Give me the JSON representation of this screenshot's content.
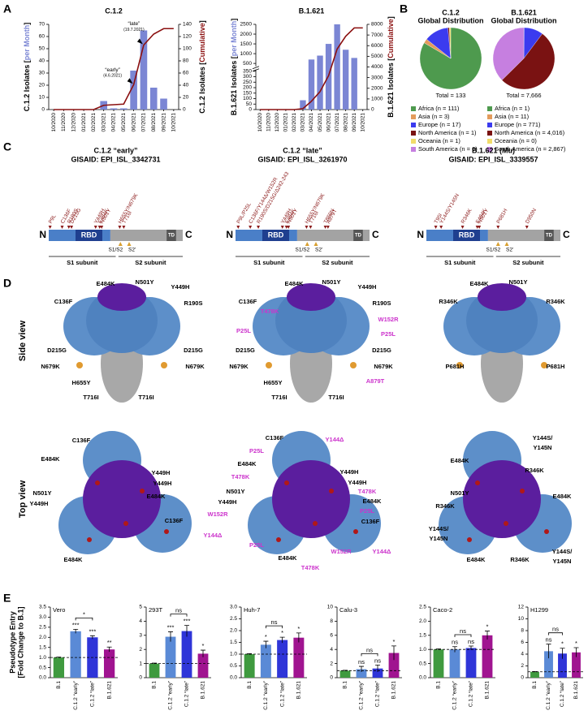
{
  "panel_labels": [
    "A",
    "B",
    "C",
    "D",
    "E"
  ],
  "chart_data": [
    {
      "type": "combo",
      "title": "C.1.2",
      "categories": [
        "10/2020",
        "11/2020",
        "12/2020",
        "01/2021",
        "02/2021",
        "03/2021",
        "04/2021",
        "05/2021",
        "06/2021",
        "07/2021",
        "08/2021",
        "09/2021",
        "10/2021"
      ],
      "series": [
        {
          "type": "bar",
          "color": "#7b86d4",
          "values": [
            0,
            0,
            0,
            0,
            0,
            7,
            1,
            1,
            32,
            65,
            18,
            9,
            0
          ]
        },
        {
          "type": "line",
          "color": "#8b1010",
          "axis": "y2",
          "values": [
            0,
            0,
            0,
            0,
            0,
            7,
            8,
            9,
            41,
            106,
            124,
            133,
            133
          ]
        }
      ],
      "ylabel": [
        "C.1.2 Isolates [",
        "per Month",
        "]"
      ],
      "y2label": [
        "C.1.2 Isolates [",
        "Cumulative",
        "]"
      ],
      "ylim": [
        0,
        70
      ],
      "yticks": [
        0,
        10,
        20,
        30,
        40,
        50,
        60,
        70
      ],
      "y2lim": [
        0,
        140
      ],
      "y2ticks": [
        0,
        20,
        40,
        60,
        80,
        100,
        120,
        140
      ],
      "annotations": [
        {
          "label": "“late”",
          "note": "(19.7.2021)"
        },
        {
          "label": "“early”",
          "note": "(4.6.2021)"
        }
      ]
    },
    {
      "type": "combo",
      "title": "B.1.621",
      "categories": [
        "10/2020",
        "11/2020",
        "12/2020",
        "01/2021",
        "02/2021",
        "03/2021",
        "04/2021",
        "05/2021",
        "06/2021",
        "07/2021",
        "08/2021",
        "09/2021",
        "10/2021"
      ],
      "series": [
        {
          "type": "bar",
          "color": "#7b86d4",
          "values": [
            0,
            0,
            0,
            0,
            0,
            85,
            700,
            900,
            1500,
            2500,
            1200,
            781,
            0
          ]
        },
        {
          "type": "line",
          "color": "#8b1010",
          "axis": "y2",
          "values": [
            0,
            0,
            0,
            0,
            0,
            85,
            785,
            1685,
            3185,
            5685,
            6885,
            7666,
            7666
          ]
        }
      ],
      "ylabel": [
        "B.1.621 Isolates [",
        "per Month",
        "]"
      ],
      "y2label": [
        "B.1.621 Isolates [",
        "Cumulative",
        "]"
      ],
      "ylim": [
        0,
        2500
      ],
      "axis_break": 350,
      "yticks": [
        0,
        50,
        100,
        150,
        200,
        250,
        300,
        350,
        500,
        1000,
        1500,
        2000,
        2500
      ],
      "y2lim": [
        0,
        8000
      ],
      "y2ticks": [
        0,
        1000,
        2000,
        3000,
        4000,
        5000,
        6000,
        7000,
        8000
      ]
    },
    {
      "type": "pie",
      "title": "C.1.2",
      "subtitle": "Global Distribution",
      "total_label": "Total = 133",
      "categories": [
        "Africa (n = 111)",
        "Asia (n = 3)",
        "Europe (n = 17)",
        "North America (n = 1)",
        "Oceania (n = 1)",
        "South America (n = 0)"
      ],
      "values": [
        111,
        3,
        17,
        1,
        1,
        0
      ],
      "colors": [
        "#4e9a4e",
        "#e39b5c",
        "#3b3bef",
        "#7a1212",
        "#f2dc6a",
        "#c67fe0"
      ]
    },
    {
      "type": "pie",
      "title": "B.1.621",
      "subtitle": "Global Distribution",
      "total_label": "Total = 7,666",
      "categories": [
        "Africa (n = 1)",
        "Asia (n = 11)",
        "Europe (n = 771)",
        "North America (n = 4,016)",
        "Oceania (n = 0)",
        "South America (n = 2,867)"
      ],
      "values": [
        1,
        11,
        771,
        4016,
        0,
        2867
      ],
      "colors": [
        "#4e9a4e",
        "#e39b5c",
        "#3b3bef",
        "#7a1212",
        "#f2dc6a",
        "#c67fe0"
      ]
    },
    {
      "type": "bar",
      "title": "Vero",
      "ylabel": [
        "Pseudotype Entry",
        "[Fold Change to B.1]"
      ],
      "categories": [
        "B.1",
        "C.1.2 “early”",
        "C.1.2 “late”",
        "B.1.621"
      ],
      "colors": [
        "#3f9a3f",
        "#5a8ad6",
        "#2f35d8",
        "#a01490"
      ],
      "values": [
        1,
        2.3,
        2.0,
        1.4
      ],
      "errors": [
        0.02,
        0.1,
        0.08,
        0.12
      ],
      "significance": [
        null,
        "***",
        "***",
        "**"
      ],
      "bracket": "*",
      "refline": 1,
      "ylim": [
        0,
        3.5
      ],
      "yticks": [
        {
          "value": 0,
          "label": "0.0"
        },
        0.5,
        {
          "value": 1,
          "label": "1.0"
        },
        1.5,
        {
          "value": 2,
          "label": "2.0"
        },
        2.5,
        {
          "value": 3,
          "label": "3.0"
        },
        3.5
      ]
    },
    {
      "type": "bar",
      "title": "293T",
      "categories": [
        "B.1",
        "C.1.2 “early”",
        "C.1.2 “late”",
        "B.1.621"
      ],
      "colors": [
        "#3f9a3f",
        "#5a8ad6",
        "#2f35d8",
        "#a01490"
      ],
      "values": [
        1,
        2.9,
        3.3,
        1.7
      ],
      "errors": [
        0.03,
        0.35,
        0.4,
        0.25
      ],
      "significance": [
        null,
        "***",
        "***",
        "*"
      ],
      "bracket": "ns",
      "refline": 1,
      "ylim": [
        0,
        5
      ],
      "yticks": [
        0,
        1,
        2,
        3,
        4,
        5
      ]
    },
    {
      "type": "bar",
      "title": "Huh-7",
      "categories": [
        "B.1",
        "C.1.2 “early”",
        "C.1.2 “late”",
        "B.1.621"
      ],
      "colors": [
        "#3f9a3f",
        "#5a8ad6",
        "#2f35d8",
        "#a01490"
      ],
      "values": [
        1,
        1.4,
        1.6,
        1.7
      ],
      "errors": [
        0.02,
        0.15,
        0.12,
        0.2
      ],
      "significance": [
        null,
        "*",
        "*",
        "*"
      ],
      "bracket": "ns",
      "refline": 1,
      "ylim": [
        0,
        3
      ],
      "yticks": [
        {
          "value": 0,
          "label": "0.0"
        },
        0.5,
        {
          "value": 1,
          "label": "1.0"
        },
        1.5,
        {
          "value": 2,
          "label": "2.0"
        },
        2.5,
        {
          "value": 3,
          "label": "3.0"
        }
      ]
    },
    {
      "type": "bar",
      "title": "Calu-3",
      "categories": [
        "B.1",
        "C.1.2 “early”",
        "C.1.2 “late”",
        "B.1.621"
      ],
      "colors": [
        "#3f9a3f",
        "#5a8ad6",
        "#2f35d8",
        "#a01490"
      ],
      "values": [
        1,
        1.2,
        1.3,
        3.5
      ],
      "errors": [
        0.05,
        0.4,
        0.5,
        1.0
      ],
      "significance": [
        null,
        "ns",
        "ns",
        "*"
      ],
      "bracket": "ns",
      "refline": 1,
      "ylim": [
        0,
        10
      ],
      "yticks": [
        0,
        2,
        4,
        6,
        8,
        10
      ]
    },
    {
      "type": "bar",
      "title": "Caco-2",
      "categories": [
        "B.1",
        "C.1.2 “early”",
        "C.1.2 “late”",
        "B.1.621"
      ],
      "colors": [
        "#3f9a3f",
        "#5a8ad6",
        "#2f35d8",
        "#a01490"
      ],
      "values": [
        1,
        1.0,
        1.05,
        1.5
      ],
      "errors": [
        0.02,
        0.1,
        0.07,
        0.15
      ],
      "significance": [
        null,
        "ns",
        "ns",
        "*"
      ],
      "bracket": "ns",
      "refline": 1,
      "ylim": [
        0,
        2.5
      ],
      "yticks": [
        {
          "value": 0,
          "label": "0.0"
        },
        0.5,
        {
          "value": 1,
          "label": "1.0"
        },
        1.5,
        {
          "value": 2,
          "label": "2.0"
        },
        2.5
      ]
    },
    {
      "type": "bar",
      "title": "H1299",
      "categories": [
        "B.1",
        "C.1.2 “early”",
        "C.1.2 “late”",
        "B.1.621"
      ],
      "colors": [
        "#3f9a3f",
        "#5a8ad6",
        "#2f35d8",
        "#a01490"
      ],
      "values": [
        1,
        4.5,
        4.1,
        4.3
      ],
      "errors": [
        0.05,
        1.2,
        0.9,
        0.8
      ],
      "significance": [
        null,
        "ns",
        "*",
        "*"
      ],
      "bracket": "ns",
      "refline": 1,
      "ylim": [
        0,
        12
      ],
      "yticks": [
        0,
        2,
        4,
        6,
        8,
        10,
        12
      ]
    }
  ],
  "domain_labels": {
    "n": "N",
    "c": "C",
    "rbd": "RBD",
    "td": "TD",
    "s1s2": "S1/S2",
    "s2p": "S2'",
    "s1": "S1 subunit",
    "s2": "S2 subunit"
  },
  "domain_maps": [
    {
      "title": "C.1.2 “early”",
      "accession": "GISAID: EPI_ISL_3342731",
      "mutations": [
        "P9L",
        "C136F",
        "R190S",
        "D215G",
        "Y449H",
        "E484K",
        "N501Y",
        "H655Y/N679K",
        "T716I"
      ]
    },
    {
      "title": "C.1.2 “late”",
      "accession": "GISAID: EPI_ISL_3261970",
      "mutations": [
        "P9L/P25L",
        "C136F/Y144Δ/W152R",
        "R190S/D215G/Δ242-243",
        "Y449H",
        "E484K",
        "N501Y",
        "H655Y/N679K",
        "T716I",
        "T859N",
        "A879T"
      ]
    },
    {
      "title": "B.1.621 (Mu)",
      "accession": "GISAID: EPI_ISL_3339557",
      "mutations": [
        "T95I",
        "Y144S/Y145N",
        "R346K",
        "E484K",
        "N501Y",
        "P681H",
        "D950N"
      ]
    }
  ],
  "view_labels": {
    "side": "Side view",
    "top": "Top view"
  },
  "structures": [
    {
      "side": [
        {
          "text": "E484K",
          "color": "#000000"
        },
        {
          "text": "N501Y",
          "color": "#000000"
        },
        {
          "text": "Y449H",
          "color": "#000000"
        },
        {
          "text": "C136F",
          "color": "#000000"
        },
        {
          "text": "R190S",
          "color": "#000000"
        },
        {
          "text": "D215G",
          "color": "#000000"
        },
        {
          "text": "D215G",
          "color": "#000000"
        },
        {
          "text": "N679K",
          "color": "#000000"
        },
        {
          "text": "N679K",
          "color": "#000000"
        },
        {
          "text": "H655Y",
          "color": "#000000"
        },
        {
          "text": "T716I",
          "color": "#000000"
        },
        {
          "text": "T716I",
          "color": "#000000"
        }
      ],
      "top": [
        {
          "text": "C136F",
          "color": "#000000"
        },
        {
          "text": "E484K",
          "color": "#000000"
        },
        {
          "text": "Y449H",
          "color": "#000000"
        },
        {
          "text": "Y449H",
          "color": "#000000"
        },
        {
          "text": "N501Y",
          "color": "#000000"
        },
        {
          "text": "Y449H",
          "color": "#000000"
        },
        {
          "text": "E484K",
          "color": "#000000"
        },
        {
          "text": "C136F",
          "color": "#000000"
        },
        {
          "text": "E484K",
          "color": "#000000"
        }
      ]
    },
    {
      "side": [
        {
          "text": "E484K",
          "color": "#000000"
        },
        {
          "text": "N501Y",
          "color": "#000000"
        },
        {
          "text": "Y449H",
          "color": "#000000"
        },
        {
          "text": "C136F",
          "color": "#000000"
        },
        {
          "text": "T478K",
          "color": "#cc33cc"
        },
        {
          "text": "R190S",
          "color": "#000000"
        },
        {
          "text": "W152R",
          "color": "#cc33cc"
        },
        {
          "text": "P25L",
          "color": "#cc33cc"
        },
        {
          "text": "P25L",
          "color": "#cc33cc"
        },
        {
          "text": "D215G",
          "color": "#000000"
        },
        {
          "text": "D215G",
          "color": "#000000"
        },
        {
          "text": "N679K",
          "color": "#000000"
        },
        {
          "text": "N679K",
          "color": "#000000"
        },
        {
          "text": "H655Y",
          "color": "#000000"
        },
        {
          "text": "A879T",
          "color": "#cc33cc"
        },
        {
          "text": "T716I",
          "color": "#000000"
        },
        {
          "text": "T716I",
          "color": "#000000"
        }
      ],
      "top": [
        {
          "text": "C136F",
          "color": "#000000"
        },
        {
          "text": "Y144Δ",
          "color": "#cc33cc"
        },
        {
          "text": "P25L",
          "color": "#cc33cc"
        },
        {
          "text": "E484K",
          "color": "#000000"
        },
        {
          "text": "T478K",
          "color": "#cc33cc"
        },
        {
          "text": "Y449H",
          "color": "#000000"
        },
        {
          "text": "Y449H",
          "color": "#000000"
        },
        {
          "text": "N501Y",
          "color": "#000000"
        },
        {
          "text": "T478K",
          "color": "#cc33cc"
        },
        {
          "text": "Y449H",
          "color": "#000000"
        },
        {
          "text": "E484K",
          "color": "#000000"
        },
        {
          "text": "W152R",
          "color": "#cc33cc"
        },
        {
          "text": "P25L",
          "color": "#cc33cc"
        },
        {
          "text": "C136F",
          "color": "#000000"
        },
        {
          "text": "Y144Δ",
          "color": "#cc33cc"
        },
        {
          "text": "P25L",
          "color": "#cc33cc"
        },
        {
          "text": "E484K",
          "color": "#000000"
        },
        {
          "text": "T478K",
          "color": "#cc33cc"
        },
        {
          "text": "W152R",
          "color": "#cc33cc"
        },
        {
          "text": "Y144Δ",
          "color": "#cc33cc"
        }
      ]
    },
    {
      "side": [
        {
          "text": "E484K",
          "color": "#000000"
        },
        {
          "text": "N501Y",
          "color": "#000000"
        },
        {
          "text": "R346K",
          "color": "#000000"
        },
        {
          "text": "R346K",
          "color": "#000000"
        },
        {
          "text": "P681H",
          "color": "#000000"
        },
        {
          "text": "P681H",
          "color": "#000000"
        }
      ],
      "top": [
        {
          "text": "Y144S/",
          "color": "#000000"
        },
        {
          "text": "Y145N",
          "color": "#000000"
        },
        {
          "text": "E484K",
          "color": "#000000"
        },
        {
          "text": "R346K",
          "color": "#000000"
        },
        {
          "text": "N501Y",
          "color": "#000000"
        },
        {
          "text": "E484K",
          "color": "#000000"
        },
        {
          "text": "R346K",
          "color": "#000000"
        },
        {
          "text": "Y144S/",
          "color": "#000000"
        },
        {
          "text": "Y145N",
          "color": "#000000"
        },
        {
          "text": "E484K",
          "color": "#000000"
        },
        {
          "text": "R346K",
          "color": "#000000"
        },
        {
          "text": "Y144S/",
          "color": "#000000"
        },
        {
          "text": "Y145N",
          "color": "#000000"
        }
      ]
    }
  ]
}
